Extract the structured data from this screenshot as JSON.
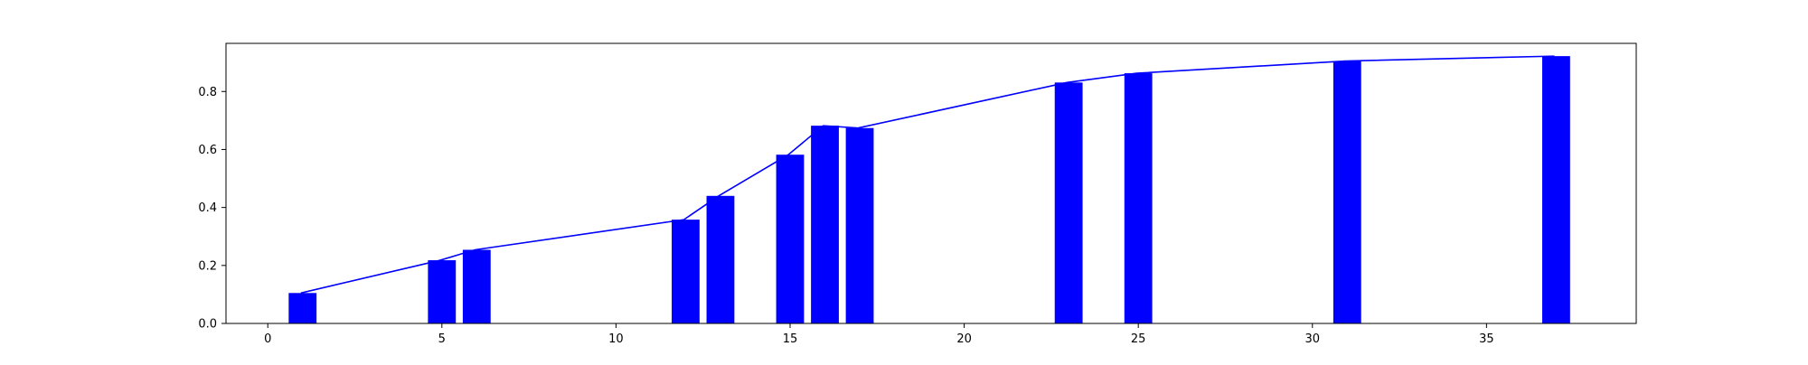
{
  "chart_data": {
    "type": "bar",
    "title": "",
    "xlabel": "",
    "ylabel": "",
    "xlim": [
      -1.2,
      39.3
    ],
    "ylim": [
      0,
      0.966
    ],
    "grid": false,
    "legend": "none",
    "x_ticks": [
      0,
      5,
      10,
      15,
      20,
      25,
      30,
      35
    ],
    "y_ticks": [
      0.0,
      0.2,
      0.4,
      0.6,
      0.8
    ],
    "x_tick_labels": [
      "0",
      "5",
      "10",
      "15",
      "20",
      "25",
      "30",
      "35"
    ],
    "y_tick_labels": [
      "0.0",
      "0.2",
      "0.4",
      "0.6",
      "0.8"
    ],
    "bar_width": 0.8,
    "bar_color": "#0000ff",
    "line_color": "#0000ff",
    "bars": [
      {
        "x": 1,
        "value": 0.105
      },
      {
        "x": 5,
        "value": 0.218
      },
      {
        "x": 6,
        "value": 0.254
      },
      {
        "x": 12,
        "value": 0.358
      },
      {
        "x": 13,
        "value": 0.44
      },
      {
        "x": 15,
        "value": 0.582
      },
      {
        "x": 16,
        "value": 0.682
      },
      {
        "x": 17,
        "value": 0.674
      },
      {
        "x": 23,
        "value": 0.831
      },
      {
        "x": 25,
        "value": 0.863
      },
      {
        "x": 31,
        "value": 0.905
      },
      {
        "x": 37,
        "value": 0.922
      }
    ],
    "line": {
      "x": [
        0.95,
        4.95,
        5.95,
        11.95,
        12.95,
        14.95,
        15.95,
        16.95,
        22.95,
        24.95,
        30.95,
        36.95
      ],
      "y": [
        0.105,
        0.218,
        0.254,
        0.358,
        0.44,
        0.582,
        0.682,
        0.674,
        0.831,
        0.863,
        0.905,
        0.922
      ]
    }
  }
}
